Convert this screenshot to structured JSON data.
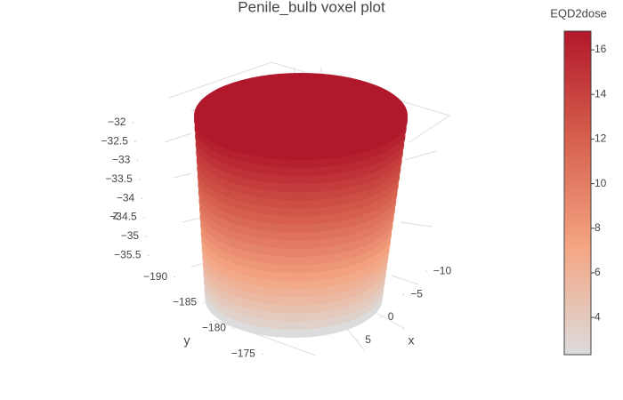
{
  "chart_data": {
    "type": "voxel3d",
    "title": "Penile_bulb voxel plot",
    "colorbar": {
      "title": "EQD2dose",
      "lim": [
        2.33,
        16.84
      ],
      "ticks": [
        4,
        6,
        8,
        10,
        12,
        14,
        16
      ],
      "colorscale": [
        "#dcdcdc",
        "#f4a582",
        "#d6604d",
        "#b2182b"
      ]
    },
    "xaxis": {
      "label": "x",
      "lim": [
        -12,
        7
      ],
      "ticks": [
        {
          "value": -10,
          "label": "−10"
        },
        {
          "value": -5,
          "label": "−5"
        },
        0,
        5
      ]
    },
    "yaxis": {
      "label": "y",
      "lim": [
        -192,
        -173
      ],
      "ticks": [
        {
          "value": -190,
          "label": "−190"
        },
        {
          "value": -185,
          "label": "−185"
        },
        {
          "value": -180,
          "label": "−180"
        },
        {
          "value": -175,
          "label": "−175"
        }
      ]
    },
    "zaxis": {
      "label": "z",
      "lim": [
        -31.7,
        -35.8
      ],
      "ticks": [
        {
          "value": -32,
          "label": "−32"
        },
        {
          "value": -32.5,
          "label": "−32.5"
        },
        {
          "value": -33,
          "label": "−33"
        },
        {
          "value": -33.5,
          "label": "−33.5"
        },
        {
          "value": -34,
          "label": "−34"
        },
        {
          "value": -34.5,
          "label": "−34.5"
        },
        {
          "value": -35,
          "label": "−35"
        },
        {
          "value": -35.5,
          "label": "−35.5"
        }
      ]
    }
  }
}
